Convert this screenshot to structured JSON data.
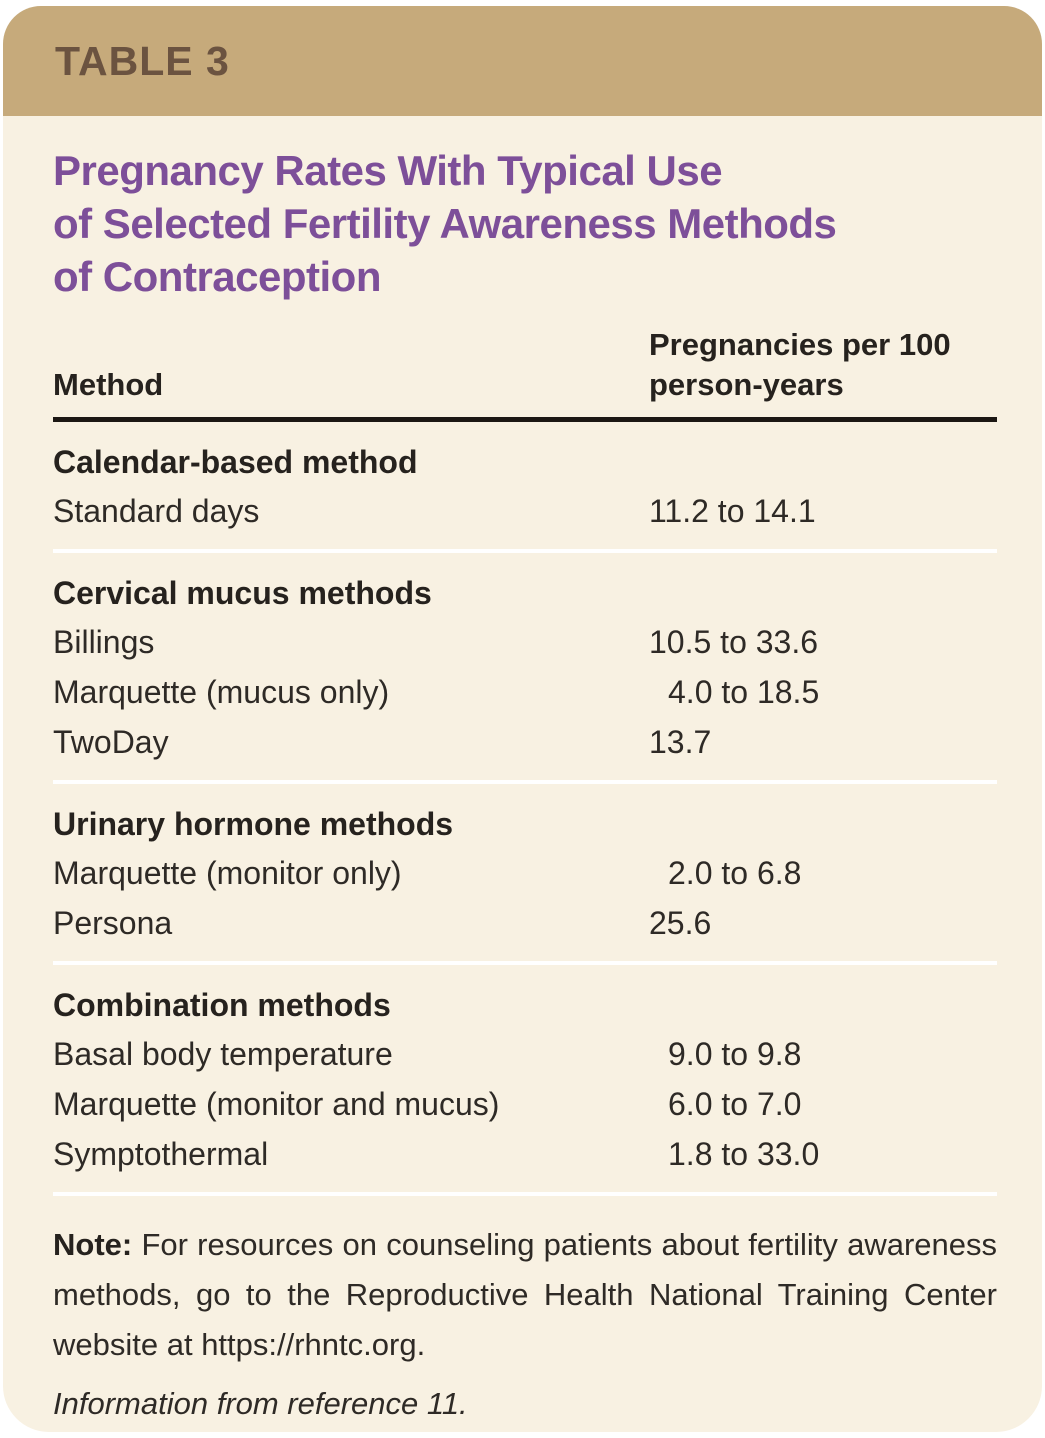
{
  "header": {
    "label": "TABLE 3"
  },
  "title": {
    "lines": [
      "Pregnancy Rates With Typical Use",
      "of Selected Fertility Awareness Methods",
      "of Contraception"
    ]
  },
  "column_headers": {
    "method": "Method",
    "value_line1": "Pregnancies per 100",
    "value_line2": "person-years"
  },
  "chart_data": {
    "type": "table",
    "title": "Pregnancy Rates With Typical Use of Selected Fertility Awareness Methods of Contraception",
    "columns": [
      "Method",
      "Pregnancies per 100 person-years"
    ],
    "sections": [
      {
        "heading": "Calendar-based method",
        "rows": [
          {
            "method": "Standard days",
            "value": "11.2 to 14.1"
          }
        ]
      },
      {
        "heading": "Cervical mucus methods",
        "rows": [
          {
            "method": "Billings",
            "value": "10.5 to 33.6"
          },
          {
            "method": "Marquette (mucus only)",
            "value": "4.0 to 18.5"
          },
          {
            "method": "TwoDay",
            "value": "13.7"
          }
        ]
      },
      {
        "heading": "Urinary hormone methods",
        "rows": [
          {
            "method": "Marquette (monitor only)",
            "value": "2.0 to 6.8"
          },
          {
            "method": "Persona",
            "value": "25.6"
          }
        ]
      },
      {
        "heading": "Combination methods",
        "rows": [
          {
            "method": "Basal body temperature",
            "value": "9.0 to 9.8"
          },
          {
            "method": "Marquette (monitor and mucus)",
            "value": "6.0 to 7.0"
          },
          {
            "method": "Symptothermal",
            "value": "1.8 to 33.0"
          }
        ]
      }
    ]
  },
  "note": {
    "label": "Note:",
    "text": " For resources on counseling patients about fertility awareness methods, go to the Reproductive Health National Training Center website at https://rhntc.org."
  },
  "source": "Information from reference 11.",
  "colors": {
    "header_band": "#c6aa7b",
    "header_text": "#6b5340",
    "body_background": "#f8f1e2",
    "title_purple": "#7d4f99",
    "body_text": "#2e2a26",
    "rule_black": "#1c1713",
    "divider_white": "#ffffff"
  }
}
